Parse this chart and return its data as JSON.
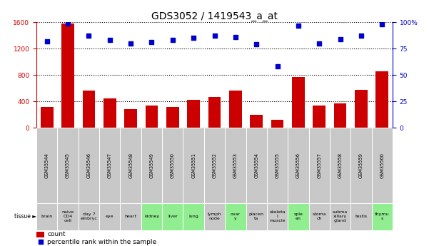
{
  "title": "GDS3052 / 1419543_a_at",
  "gsm_labels": [
    "GSM35544",
    "GSM35545",
    "GSM35546",
    "GSM35547",
    "GSM35548",
    "GSM35549",
    "GSM35550",
    "GSM35551",
    "GSM35552",
    "GSM35553",
    "GSM35554",
    "GSM35555",
    "GSM35556",
    "GSM35557",
    "GSM35558",
    "GSM35559",
    "GSM35560"
  ],
  "tissue_labels": [
    "brain",
    "naive\nCD4\ncell",
    "day 7\nembryc",
    "eye",
    "heart",
    "kidney",
    "liver",
    "lung",
    "lymph\nnode",
    "ovar\ny",
    "placen\nta",
    "skeleta\nl\nmuscle",
    "sple\nen",
    "stoma\nch",
    "subma\nxillary\ngland",
    "testis",
    "thymu\ns"
  ],
  "tissue_colors": [
    "#c8c8c8",
    "#c8c8c8",
    "#c8c8c8",
    "#c8c8c8",
    "#c8c8c8",
    "#90ee90",
    "#90ee90",
    "#90ee90",
    "#c8c8c8",
    "#90ee90",
    "#c8c8c8",
    "#c8c8c8",
    "#90ee90",
    "#c8c8c8",
    "#c8c8c8",
    "#c8c8c8",
    "#90ee90"
  ],
  "count_values": [
    320,
    1580,
    570,
    450,
    290,
    340,
    315,
    420,
    470,
    570,
    200,
    120,
    775,
    340,
    370,
    580,
    855
  ],
  "percentile_values": [
    82,
    99,
    87,
    83,
    80,
    81,
    83,
    85,
    87,
    86,
    79,
    58,
    97,
    80,
    84,
    87,
    98
  ],
  "ylim_left": [
    0,
    1600
  ],
  "ylim_right": [
    0,
    100
  ],
  "yticks_left": [
    0,
    400,
    800,
    1200,
    1600
  ],
  "yticks_right": [
    0,
    25,
    50,
    75,
    100
  ],
  "bar_color": "#cc0000",
  "dot_color": "#0000cc",
  "grid_color": "black",
  "left_tick_color": "#cc0000",
  "right_tick_color": "#0000cc",
  "title_fontsize": 10,
  "tick_fontsize": 6.5,
  "gsm_label_fontsize": 4.8,
  "tissue_label_fontsize": 4.5,
  "legend_fontsize": 6.5
}
